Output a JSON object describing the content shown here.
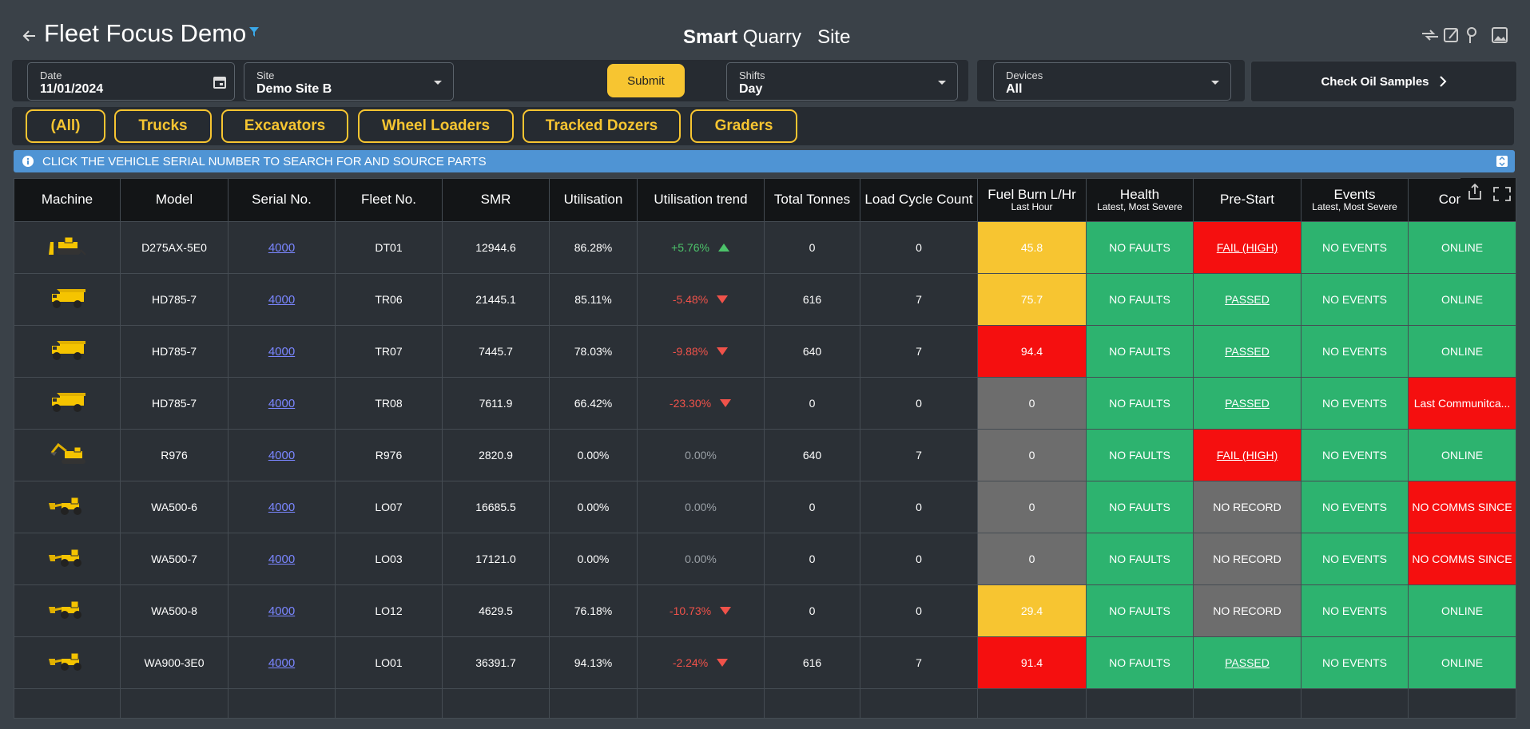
{
  "header": {
    "title": "Fleet Focus Demo",
    "brand_bold": "Smart",
    "brand_light": "Quarry",
    "site": "Site"
  },
  "filters": {
    "date": {
      "label": "Date",
      "value": "11/01/2024"
    },
    "site": {
      "label": "Site",
      "value": "Demo Site B"
    },
    "submit": "Submit",
    "shifts": {
      "label": "Shifts",
      "value": "Day"
    },
    "devices": {
      "label": "Devices",
      "value": "All"
    },
    "oil": "Check Oil Samples"
  },
  "tabs": [
    "(All)",
    "Trucks",
    "Excavators",
    "Wheel Loaders",
    "Tracked Dozers",
    "Graders"
  ],
  "banner": "CLICK THE VEHICLE SERIAL NUMBER TO SEARCH FOR AND SOURCE PARTS",
  "table": {
    "columns": [
      {
        "title": "Machine"
      },
      {
        "title": "Model"
      },
      {
        "title": "Serial No."
      },
      {
        "title": "Fleet No."
      },
      {
        "title": "SMR"
      },
      {
        "title": "Utilisation"
      },
      {
        "title": "Utilisation trend"
      },
      {
        "title": "Total Tonnes"
      },
      {
        "title": "Load Cycle Count"
      },
      {
        "title": "Fuel Burn L/Hr",
        "subtitle": "Last Hour"
      },
      {
        "title": "Health",
        "subtitle": "Latest, Most Severe",
        "color": "#2db36f"
      },
      {
        "title": "Pre-Start"
      },
      {
        "title": "Events",
        "subtitle": "Latest, Most Severe",
        "color": "#2db36f"
      },
      {
        "title": "Comms"
      }
    ],
    "rows": [
      {
        "icon": "dozer",
        "model": "D275AX-5E0",
        "serial": "4000",
        "fleet": "DT01",
        "smr": "12944.6",
        "utilisation": "86.28%",
        "trend": "+5.76%",
        "tonnes": "0",
        "cycles": "0",
        "fuel": "45.8",
        "fuel_color": "#f7c531",
        "health": "NO FAULTS",
        "prestart": "FAIL (HIGH)",
        "prestart_color": "#f50f0f",
        "prestart_link": true,
        "events": "NO EVENTS",
        "comms": "ONLINE",
        "comms_color": "#2db36f"
      },
      {
        "icon": "truck",
        "model": "HD785-7",
        "serial": "4000",
        "fleet": "TR06",
        "smr": "21445.1",
        "utilisation": "85.11%",
        "trend": "-5.48%",
        "tonnes": "616",
        "cycles": "7",
        "fuel": "75.7",
        "fuel_color": "#f7c531",
        "health": "NO FAULTS",
        "prestart": "PASSED",
        "prestart_color": "#2db36f",
        "prestart_link": true,
        "events": "NO EVENTS",
        "comms": "ONLINE",
        "comms_color": "#2db36f"
      },
      {
        "icon": "truck",
        "model": "HD785-7",
        "serial": "4000",
        "fleet": "TR07",
        "smr": "7445.7",
        "utilisation": "78.03%",
        "trend": "-9.88%",
        "tonnes": "640",
        "cycles": "7",
        "fuel": "94.4",
        "fuel_color": "#f50f0f",
        "health": "NO FAULTS",
        "prestart": "PASSED",
        "prestart_color": "#2db36f",
        "prestart_link": true,
        "events": "NO EVENTS",
        "comms": "ONLINE",
        "comms_color": "#2db36f"
      },
      {
        "icon": "truck",
        "model": "HD785-7",
        "serial": "4000",
        "fleet": "TR08",
        "smr": "7611.9",
        "utilisation": "66.42%",
        "trend": "-23.30%",
        "tonnes": "0",
        "cycles": "0",
        "fuel": "0",
        "fuel_color": "#6d6d6d",
        "health": "NO FAULTS",
        "prestart": "PASSED",
        "prestart_color": "#2db36f",
        "prestart_link": true,
        "events": "NO EVENTS",
        "comms": "Last Communitca...",
        "comms_color": "#f50f0f"
      },
      {
        "icon": "excavator",
        "model": "R976",
        "serial": "4000",
        "fleet": "R976",
        "smr": "2820.9",
        "utilisation": "0.00%",
        "trend": "0.00%",
        "tonnes": "640",
        "cycles": "7",
        "fuel": "0",
        "fuel_color": "#6d6d6d",
        "health": "NO FAULTS",
        "prestart": "FAIL (HIGH)",
        "prestart_color": "#f50f0f",
        "prestart_link": true,
        "events": "NO EVENTS",
        "comms": "ONLINE",
        "comms_color": "#2db36f"
      },
      {
        "icon": "loader",
        "model": "WA500-6",
        "serial": "4000",
        "fleet": "LO07",
        "smr": "16685.5",
        "utilisation": "0.00%",
        "trend": "0.00%",
        "tonnes": "0",
        "cycles": "0",
        "fuel": "0",
        "fuel_color": "#6d6d6d",
        "health": "NO FAULTS",
        "prestart": "NO RECORD",
        "prestart_color": "#6d6d6d",
        "prestart_link": false,
        "events": "NO EVENTS",
        "comms": "NO COMMS SINCE",
        "comms_color": "#f50f0f"
      },
      {
        "icon": "loader",
        "model": "WA500-7",
        "serial": "4000",
        "fleet": "LO03",
        "smr": "17121.0",
        "utilisation": "0.00%",
        "trend": "0.00%",
        "tonnes": "0",
        "cycles": "0",
        "fuel": "0",
        "fuel_color": "#6d6d6d",
        "health": "NO FAULTS",
        "prestart": "NO RECORD",
        "prestart_color": "#6d6d6d",
        "prestart_link": false,
        "events": "NO EVENTS",
        "comms": "NO COMMS SINCE",
        "comms_color": "#f50f0f"
      },
      {
        "icon": "loader",
        "model": "WA500-8",
        "serial": "4000",
        "fleet": "LO12",
        "smr": "4629.5",
        "utilisation": "76.18%",
        "trend": "-10.73%",
        "tonnes": "0",
        "cycles": "0",
        "fuel": "29.4",
        "fuel_color": "#f7c531",
        "health": "NO FAULTS",
        "prestart": "NO RECORD",
        "prestart_color": "#6d6d6d",
        "prestart_link": false,
        "events": "NO EVENTS",
        "comms": "ONLINE",
        "comms_color": "#2db36f"
      },
      {
        "icon": "loader",
        "model": "WA900-3E0",
        "serial": "4000",
        "fleet": "LO01",
        "smr": "36391.7",
        "utilisation": "94.13%",
        "trend": "-2.24%",
        "tonnes": "616",
        "cycles": "7",
        "fuel": "91.4",
        "fuel_color": "#f50f0f",
        "health": "NO FAULTS",
        "prestart": "PASSED",
        "prestart_color": "#2db36f",
        "prestart_link": true,
        "events": "NO EVENTS",
        "comms": "ONLINE",
        "comms_color": "#2db36f"
      }
    ]
  }
}
